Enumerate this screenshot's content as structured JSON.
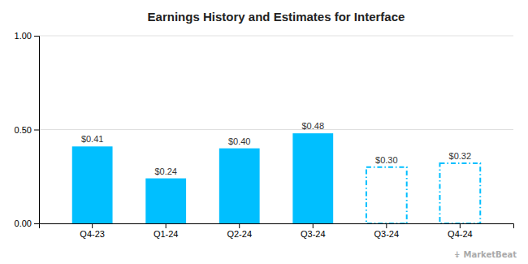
{
  "chart_data": {
    "type": "bar",
    "title": "Earnings History and Estimates for Interface",
    "categories": [
      "Q4-23",
      "Q1-24",
      "Q2-24",
      "Q3-24",
      "Q3-24",
      "Q4-24"
    ],
    "series": [
      {
        "color": "#00BFFF",
        "line_style": "solid",
        "values": [
          0.41,
          0.24,
          0.4,
          0.48,
          null,
          null
        ],
        "value_labels": [
          "$0.41",
          "$0.24",
          "$0.40",
          "$0.48",
          null,
          null
        ]
      },
      {
        "color": "#00BFFF",
        "line_style": "dashed",
        "values": [
          null,
          null,
          null,
          null,
          0.3,
          0.32
        ],
        "value_labels": [
          null,
          null,
          null,
          null,
          "$0.30",
          "$0.32"
        ]
      }
    ],
    "stacked": true,
    "data_labels": true,
    "ylim": [
      0,
      1.0
    ],
    "yticks": [
      {
        "value": 0.0,
        "label": "0.00"
      },
      {
        "value": 0.5,
        "label": "0.50"
      },
      {
        "value": 1.0,
        "label": "1.00"
      }
    ],
    "grid": true,
    "annotations": [
      "⍖",
      "MarketBeat"
    ]
  }
}
